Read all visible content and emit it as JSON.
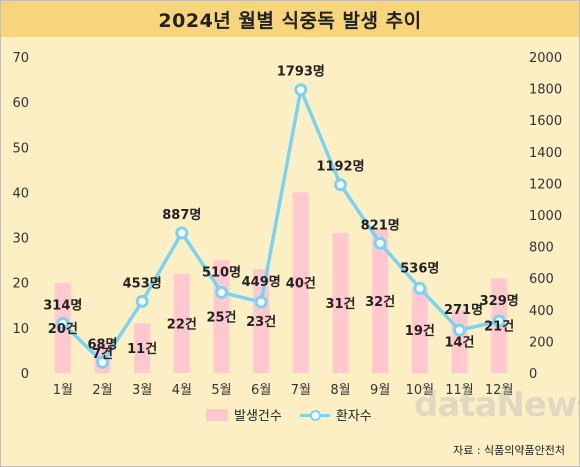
{
  "title": "2024년 월별 식중독 발생 추이",
  "legend": {
    "bar_label": "발생건수",
    "line_label": "환자수"
  },
  "watermark": "dataNews",
  "source": "자료 : 식품의약품안전처",
  "colors": {
    "bar": "#ffc9cf",
    "line": "#79d3f2",
    "title_bg": "#f7d57c",
    "background": "#fcefc4"
  },
  "chart_data": {
    "type": "bar+line",
    "title": "2024년 월별 식중독 발생 추이",
    "categories": [
      "1월",
      "2월",
      "3월",
      "4월",
      "5월",
      "6월",
      "7월",
      "8월",
      "9월",
      "10월",
      "11월",
      "12월"
    ],
    "series": [
      {
        "name": "발생건수",
        "type": "bar",
        "axis": "left",
        "values": [
          20,
          7,
          11,
          22,
          25,
          23,
          40,
          31,
          32,
          19,
          14,
          21
        ],
        "labels": [
          "20건",
          "7건",
          "11건",
          "22건",
          "25건",
          "23건",
          "40건",
          "31건",
          "32건",
          "19건",
          "14건",
          "21건"
        ]
      },
      {
        "name": "환자수",
        "type": "line",
        "axis": "right",
        "values": [
          314,
          68,
          453,
          887,
          510,
          449,
          1793,
          1192,
          821,
          536,
          271,
          329
        ],
        "labels": [
          "314명",
          "68명",
          "453명",
          "887명",
          "510명",
          "449명",
          "1793명",
          "1192명",
          "821명",
          "536명",
          "271명",
          "329명"
        ]
      }
    ],
    "y_left": {
      "min": 0,
      "max": 70,
      "ticks": [
        0,
        10,
        20,
        30,
        40,
        50,
        60,
        70
      ]
    },
    "y_right": {
      "min": 0,
      "max": 2000,
      "ticks": [
        0,
        200,
        400,
        600,
        800,
        1000,
        1200,
        1400,
        1600,
        1800,
        2000
      ]
    },
    "grid": false,
    "legend_position": "bottom"
  }
}
